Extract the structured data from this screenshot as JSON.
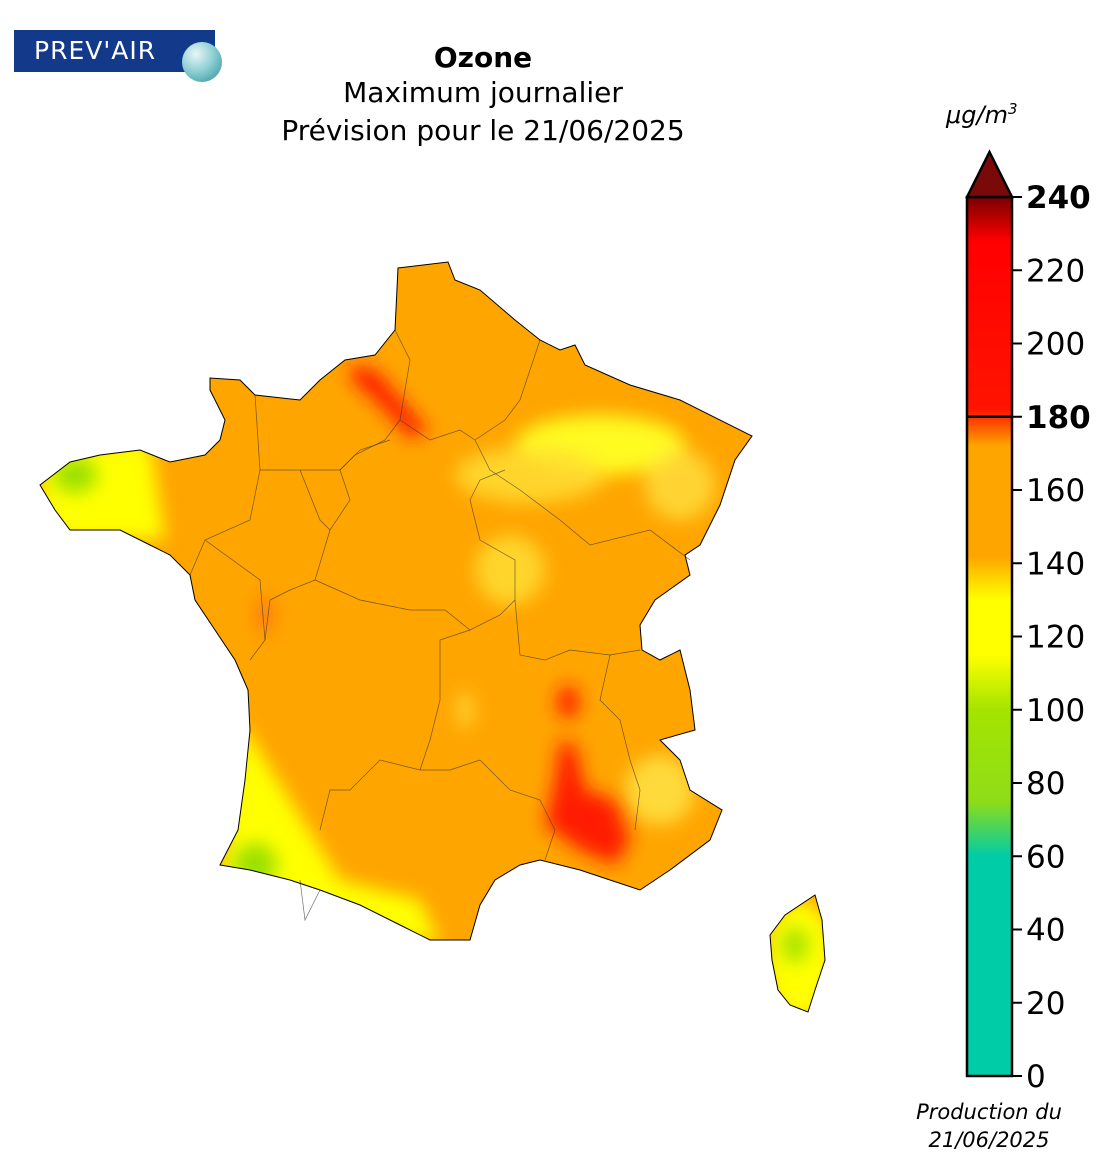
{
  "logo": {
    "text": "PREV'AIR"
  },
  "header": {
    "title": "Ozone",
    "subtitle": "Maximum journalier",
    "forecast": "Prévision pour le 21/06/2025"
  },
  "colorbar": {
    "unit_base": "μg/m",
    "unit_exp": "3",
    "ticks": [
      {
        "value": 0,
        "label": "0",
        "bold": false
      },
      {
        "value": 20,
        "label": "20",
        "bold": false
      },
      {
        "value": 40,
        "label": "40",
        "bold": false
      },
      {
        "value": 60,
        "label": "60",
        "bold": false
      },
      {
        "value": 80,
        "label": "80",
        "bold": false
      },
      {
        "value": 100,
        "label": "100",
        "bold": false
      },
      {
        "value": 120,
        "label": "120",
        "bold": false
      },
      {
        "value": 140,
        "label": "140",
        "bold": false
      },
      {
        "value": 160,
        "label": "160",
        "bold": false
      },
      {
        "value": 180,
        "label": "180",
        "bold": true
      },
      {
        "value": 200,
        "label": "200",
        "bold": false
      },
      {
        "value": 220,
        "label": "220",
        "bold": false
      },
      {
        "value": 240,
        "label": "240",
        "bold": true
      }
    ],
    "range": [
      0,
      240
    ],
    "threshold": 180,
    "stops": [
      {
        "value": 0,
        "color": "#00cca8"
      },
      {
        "value": 60,
        "color": "#00cca8"
      },
      {
        "value": 75,
        "color": "#8fdc18"
      },
      {
        "value": 100,
        "color": "#a4e400"
      },
      {
        "value": 115,
        "color": "#ffff00"
      },
      {
        "value": 130,
        "color": "#ffff00"
      },
      {
        "value": 142,
        "color": "#ffa500"
      },
      {
        "value": 172,
        "color": "#ffa500"
      },
      {
        "value": 182,
        "color": "#ff1400"
      },
      {
        "value": 228,
        "color": "#ff0000"
      },
      {
        "value": 240,
        "color": "#7a0000"
      }
    ],
    "extend_color": "#7a0a0a"
  },
  "footer": {
    "line1": "Production du",
    "line2": "21/06/2025"
  },
  "map": {
    "base_color": "#ffa500",
    "low_color": "#ffff00",
    "very_low_color": "#9be000",
    "high_color": "#ff1a00"
  }
}
